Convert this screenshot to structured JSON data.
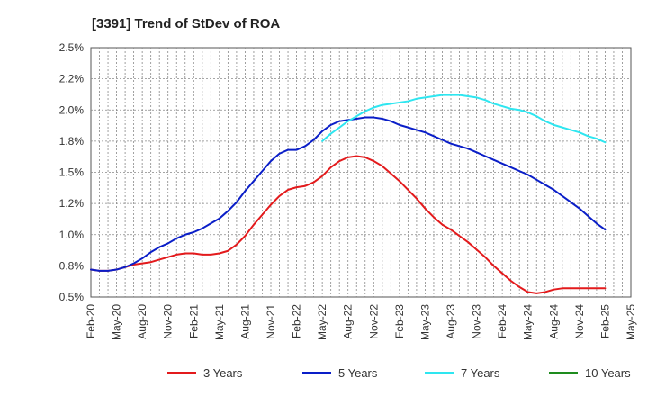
{
  "chart_data": {
    "type": "line",
    "title": "[3391]  Trend of StDev of ROA",
    "xlabel": "",
    "ylabel": "",
    "y_tick_labels": [
      "0.5%",
      "0.8%",
      "1.0%",
      "1.2%",
      "1.5%",
      "1.8%",
      "2.0%",
      "2.2%",
      "2.5%"
    ],
    "y_ticks": [
      0.5,
      0.75,
      1.0,
      1.25,
      1.5,
      1.75,
      2.0,
      2.25,
      2.5
    ],
    "ylim": [
      0.5,
      2.5
    ],
    "x_tick_labels": [
      "Feb-20",
      "May-20",
      "Aug-20",
      "Nov-20",
      "Feb-21",
      "May-21",
      "Aug-21",
      "Nov-21",
      "Feb-22",
      "May-22",
      "Aug-22",
      "Nov-22",
      "Feb-23",
      "May-23",
      "Aug-23",
      "Nov-23",
      "Feb-24",
      "May-24",
      "Aug-24",
      "Nov-24",
      "Feb-25",
      "May-25"
    ],
    "grid": true,
    "legend_position": "bottom",
    "series": [
      {
        "name": "3 Years",
        "color": "#e31a1c",
        "points": [
          [
            "Feb-20",
            0.72
          ],
          [
            "Mar-20",
            0.71
          ],
          [
            "Apr-20",
            0.71
          ],
          [
            "May-20",
            0.72
          ],
          [
            "Jun-20",
            0.74
          ],
          [
            "Jul-20",
            0.76
          ],
          [
            "Aug-20",
            0.77
          ],
          [
            "Sep-20",
            0.78
          ],
          [
            "Oct-20",
            0.8
          ],
          [
            "Nov-20",
            0.82
          ],
          [
            "Dec-20",
            0.84
          ],
          [
            "Jan-21",
            0.85
          ],
          [
            "Feb-21",
            0.85
          ],
          [
            "Mar-21",
            0.84
          ],
          [
            "Apr-21",
            0.84
          ],
          [
            "May-21",
            0.85
          ],
          [
            "Jun-21",
            0.87
          ],
          [
            "Jul-21",
            0.92
          ],
          [
            "Aug-21",
            0.99
          ],
          [
            "Sep-21",
            1.08
          ],
          [
            "Oct-21",
            1.16
          ],
          [
            "Nov-21",
            1.24
          ],
          [
            "Dec-21",
            1.31
          ],
          [
            "Jan-22",
            1.36
          ],
          [
            "Feb-22",
            1.38
          ],
          [
            "Mar-22",
            1.39
          ],
          [
            "Apr-22",
            1.42
          ],
          [
            "May-22",
            1.47
          ],
          [
            "Jun-22",
            1.54
          ],
          [
            "Jul-22",
            1.59
          ],
          [
            "Aug-22",
            1.62
          ],
          [
            "Sep-22",
            1.63
          ],
          [
            "Oct-22",
            1.62
          ],
          [
            "Nov-22",
            1.59
          ],
          [
            "Dec-22",
            1.55
          ],
          [
            "Jan-23",
            1.49
          ],
          [
            "Feb-23",
            1.43
          ],
          [
            "Mar-23",
            1.36
          ],
          [
            "Apr-23",
            1.29
          ],
          [
            "May-23",
            1.21
          ],
          [
            "Jun-23",
            1.14
          ],
          [
            "Jul-23",
            1.08
          ],
          [
            "Aug-23",
            1.04
          ],
          [
            "Sep-23",
            0.99
          ],
          [
            "Oct-23",
            0.94
          ],
          [
            "Nov-23",
            0.88
          ],
          [
            "Dec-23",
            0.82
          ],
          [
            "Jan-24",
            0.75
          ],
          [
            "Feb-24",
            0.69
          ],
          [
            "Mar-24",
            0.63
          ],
          [
            "Apr-24",
            0.58
          ],
          [
            "May-24",
            0.54
          ],
          [
            "Jun-24",
            0.53
          ],
          [
            "Jul-24",
            0.54
          ],
          [
            "Aug-24",
            0.56
          ],
          [
            "Sep-24",
            0.57
          ],
          [
            "Oct-24",
            0.57
          ],
          [
            "Nov-24",
            0.57
          ],
          [
            "Dec-24",
            0.57
          ],
          [
            "Jan-25",
            0.57
          ],
          [
            "Feb-25",
            0.57
          ]
        ]
      },
      {
        "name": "5 Years",
        "color": "#0a1ec8",
        "points": [
          [
            "Feb-20",
            0.72
          ],
          [
            "Mar-20",
            0.71
          ],
          [
            "Apr-20",
            0.71
          ],
          [
            "May-20",
            0.72
          ],
          [
            "Jun-20",
            0.74
          ],
          [
            "Jul-20",
            0.77
          ],
          [
            "Aug-20",
            0.81
          ],
          [
            "Sep-20",
            0.86
          ],
          [
            "Oct-20",
            0.9
          ],
          [
            "Nov-20",
            0.93
          ],
          [
            "Dec-20",
            0.97
          ],
          [
            "Jan-21",
            1.0
          ],
          [
            "Feb-21",
            1.02
          ],
          [
            "Mar-21",
            1.05
          ],
          [
            "Apr-21",
            1.09
          ],
          [
            "May-21",
            1.13
          ],
          [
            "Jun-21",
            1.19
          ],
          [
            "Jul-21",
            1.26
          ],
          [
            "Aug-21",
            1.35
          ],
          [
            "Sep-21",
            1.43
          ],
          [
            "Oct-21",
            1.51
          ],
          [
            "Nov-21",
            1.59
          ],
          [
            "Dec-21",
            1.65
          ],
          [
            "Jan-22",
            1.68
          ],
          [
            "Feb-22",
            1.68
          ],
          [
            "Mar-22",
            1.71
          ],
          [
            "Apr-22",
            1.76
          ],
          [
            "May-22",
            1.83
          ],
          [
            "Jun-22",
            1.88
          ],
          [
            "Jul-22",
            1.91
          ],
          [
            "Aug-22",
            1.92
          ],
          [
            "Sep-22",
            1.93
          ],
          [
            "Oct-22",
            1.94
          ],
          [
            "Nov-22",
            1.94
          ],
          [
            "Dec-22",
            1.93
          ],
          [
            "Jan-23",
            1.91
          ],
          [
            "Feb-23",
            1.88
          ],
          [
            "Mar-23",
            1.86
          ],
          [
            "Apr-23",
            1.84
          ],
          [
            "May-23",
            1.82
          ],
          [
            "Jun-23",
            1.79
          ],
          [
            "Jul-23",
            1.76
          ],
          [
            "Aug-23",
            1.73
          ],
          [
            "Sep-23",
            1.71
          ],
          [
            "Oct-23",
            1.69
          ],
          [
            "Nov-23",
            1.66
          ],
          [
            "Dec-23",
            1.63
          ],
          [
            "Jan-24",
            1.6
          ],
          [
            "Feb-24",
            1.57
          ],
          [
            "Mar-24",
            1.54
          ],
          [
            "Apr-24",
            1.51
          ],
          [
            "May-24",
            1.48
          ],
          [
            "Jun-24",
            1.44
          ],
          [
            "Jul-24",
            1.4
          ],
          [
            "Aug-24",
            1.36
          ],
          [
            "Sep-24",
            1.31
          ],
          [
            "Oct-24",
            1.26
          ],
          [
            "Nov-24",
            1.21
          ],
          [
            "Dec-24",
            1.15
          ],
          [
            "Jan-25",
            1.09
          ],
          [
            "Feb-25",
            1.04
          ]
        ]
      },
      {
        "name": "7 Years",
        "color": "#2ee6f0",
        "points": [
          [
            "May-22",
            1.75
          ],
          [
            "Jun-22",
            1.81
          ],
          [
            "Jul-22",
            1.86
          ],
          [
            "Aug-22",
            1.91
          ],
          [
            "Sep-22",
            1.95
          ],
          [
            "Oct-22",
            1.99
          ],
          [
            "Nov-22",
            2.02
          ],
          [
            "Dec-22",
            2.04
          ],
          [
            "Jan-23",
            2.05
          ],
          [
            "Feb-23",
            2.06
          ],
          [
            "Mar-23",
            2.07
          ],
          [
            "Apr-23",
            2.09
          ],
          [
            "May-23",
            2.1
          ],
          [
            "Jun-23",
            2.11
          ],
          [
            "Jul-23",
            2.12
          ],
          [
            "Aug-23",
            2.12
          ],
          [
            "Sep-23",
            2.12
          ],
          [
            "Oct-23",
            2.11
          ],
          [
            "Nov-23",
            2.1
          ],
          [
            "Dec-23",
            2.08
          ],
          [
            "Jan-24",
            2.05
          ],
          [
            "Feb-24",
            2.03
          ],
          [
            "Mar-24",
            2.01
          ],
          [
            "Apr-24",
            2.0
          ],
          [
            "May-24",
            1.98
          ],
          [
            "Jun-24",
            1.95
          ],
          [
            "Jul-24",
            1.91
          ],
          [
            "Aug-24",
            1.88
          ],
          [
            "Sep-24",
            1.86
          ],
          [
            "Oct-24",
            1.84
          ],
          [
            "Nov-24",
            1.82
          ],
          [
            "Dec-24",
            1.79
          ],
          [
            "Jan-25",
            1.77
          ],
          [
            "Feb-25",
            1.74
          ]
        ]
      },
      {
        "name": "10 Years",
        "color": "#1e8c1e",
        "points": []
      }
    ]
  }
}
